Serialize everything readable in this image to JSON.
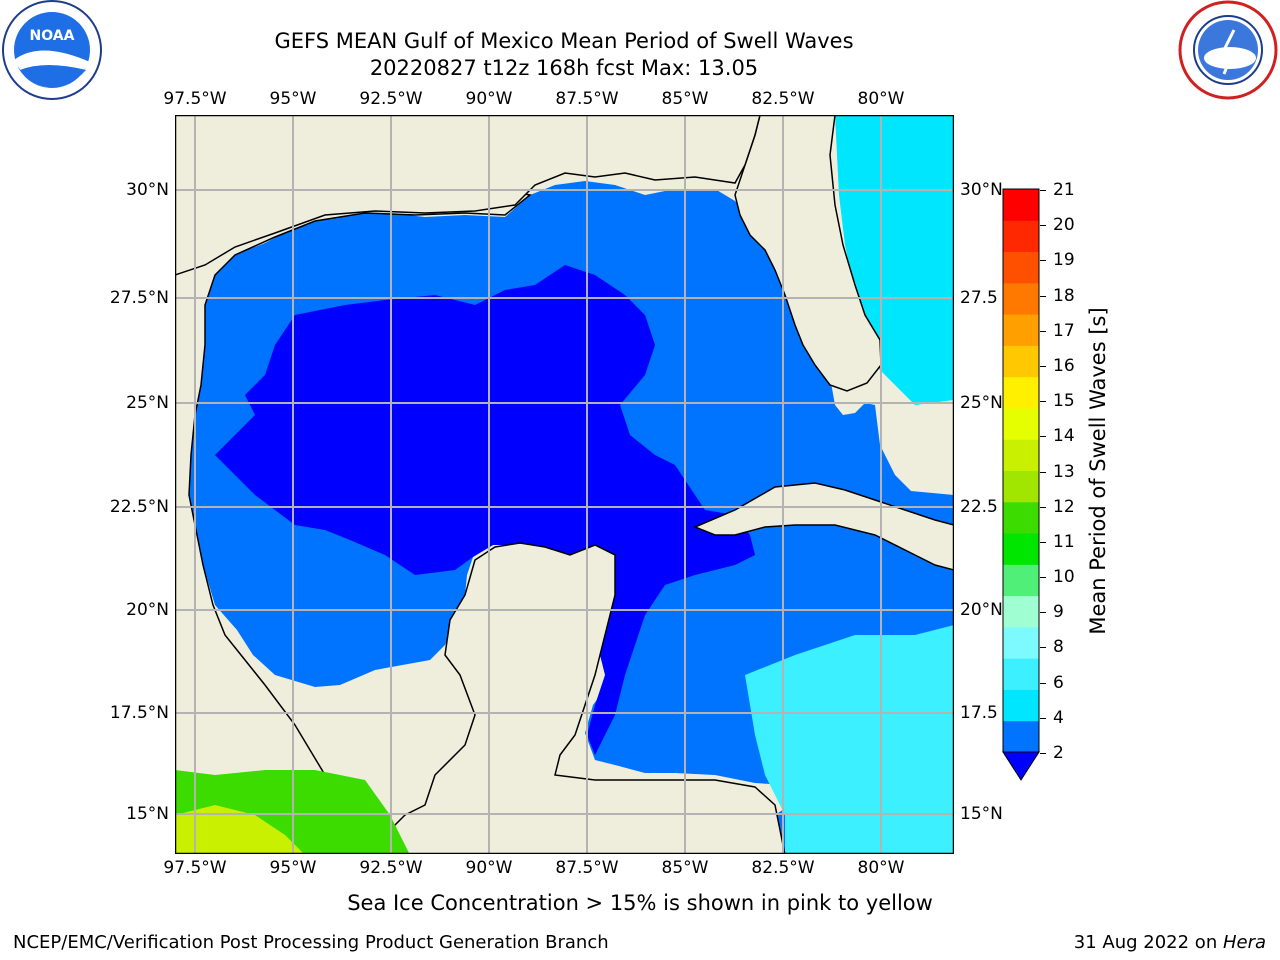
{
  "header": {
    "title_line1": "GEFS MEAN Gulf of Mexico Mean Period of Swell Waves",
    "title_line2": "20220827 t12z 168h fcst   Max: 13.05"
  },
  "logos": {
    "left": {
      "name": "noaa-logo",
      "text": "NOAA",
      "ring_text": "NATIONAL OCEANIC AND ATMOSPHERIC ADMINISTRATION · U.S. DEPARTMENT OF COMMERCE"
    },
    "right": {
      "name": "nws-logo",
      "ring_text": "NATIONAL WEATHER SERVICE"
    }
  },
  "map": {
    "lon_ticks": [
      "97.5°W",
      "95°W",
      "92.5°W",
      "90°W",
      "87.5°W",
      "85°W",
      "82.5°W",
      "80°W"
    ],
    "lat_ticks": [
      "30°N",
      "27.5°N",
      "25°N",
      "22.5°N",
      "20°N",
      "17.5°N",
      "15°N"
    ],
    "lat_ticks_right": [
      "30°N",
      "27.5",
      "25°N",
      "22.5",
      "20°N",
      "17.5",
      "15°N"
    ],
    "land_color": "#efeedc",
    "grid_color": "#b3b3b3"
  },
  "colorbar": {
    "label": "Mean Period of Swell Waves [s]",
    "ticks": [
      "21",
      "20",
      "19",
      "18",
      "17",
      "16",
      "15",
      "14",
      "13",
      "12",
      "11",
      "10",
      "9",
      "8",
      "6",
      "4",
      "2"
    ],
    "colors_bottom_to_top": [
      "#0073ff",
      "#00e6ff",
      "#3cf0ff",
      "#7dfaff",
      "#a0ffd2",
      "#50f078",
      "#00e600",
      "#3cdc00",
      "#a0e600",
      "#c8f000",
      "#e6ff00",
      "#fff000",
      "#ffc800",
      "#ffa000",
      "#ff7800",
      "#ff5000",
      "#ff2800",
      "#ff0000"
    ],
    "under_color": "#0000ff"
  },
  "footer": {
    "caption": "Sea Ice Concentration > 15% is shown in pink to yellow",
    "credit": "NCEP/EMC/Verification Post Processing Product Generation Branch",
    "date": "31 Aug 2022 on ",
    "host": "Hera"
  }
}
